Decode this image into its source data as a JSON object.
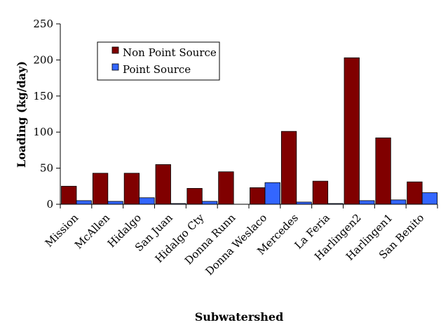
{
  "chart_data": {
    "type": "bar",
    "title": "",
    "xlabel": "Subwatershed",
    "ylabel": "Loading (kg/day)",
    "ylim": [
      0,
      250
    ],
    "yticks": [
      0,
      50,
      100,
      150,
      200,
      250
    ],
    "grid": false,
    "legend_position": "top-left",
    "categories": [
      "Mission",
      "McAllen",
      "Hidalgo",
      "San Juan",
      "Hidalgo Cty",
      "Donna Runn",
      "Donna Weslaco",
      "Mercedes",
      "La Feria",
      "Harlingen2",
      "Harlingen1",
      "San Benito"
    ],
    "series": [
      {
        "name": "Non Point Source",
        "color": "#800000",
        "values": [
          25,
          43,
          43,
          55,
          22,
          45,
          23,
          101,
          32,
          203,
          92,
          31
        ]
      },
      {
        "name": "Point Source",
        "color": "#3366FF",
        "values": [
          5,
          4,
          9,
          1,
          4,
          0,
          30,
          3,
          1,
          5,
          6,
          16
        ]
      }
    ]
  }
}
